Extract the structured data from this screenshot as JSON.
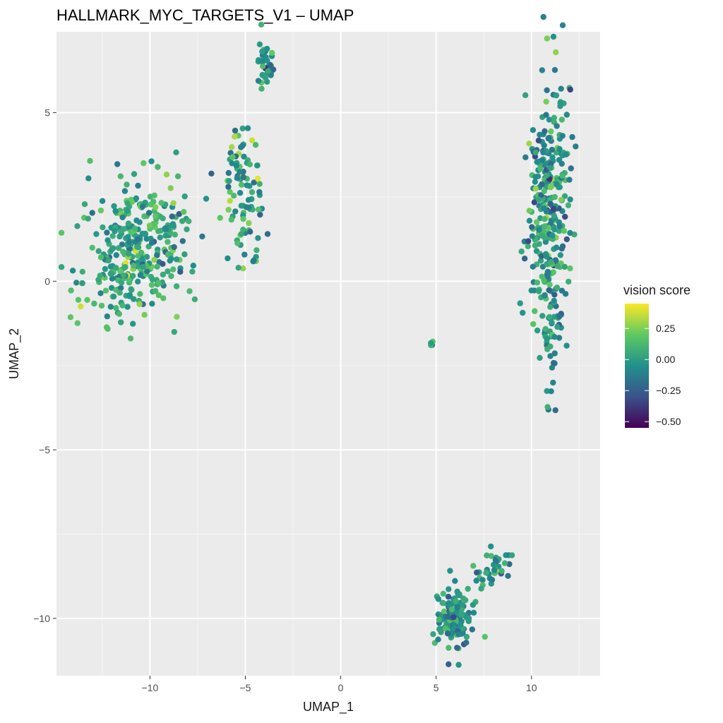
{
  "chart_data": {
    "type": "scatter",
    "title": "HALLMARK_MYC_TARGETS_V1 – UMAP",
    "xlabel": "UMAP_1",
    "ylabel": "UMAP_2",
    "xlim": [
      -14.9,
      13.6
    ],
    "ylim": [
      -11.7,
      7.4
    ],
    "x_ticks": [
      -10,
      -5,
      0,
      5,
      10
    ],
    "x_tick_labels": [
      "−10",
      "−5",
      "0",
      "5",
      "10"
    ],
    "y_ticks": [
      -10,
      -5,
      0,
      5
    ],
    "y_tick_labels": [
      "−10",
      "−5",
      "0",
      "5"
    ],
    "grid": true,
    "legend": {
      "title": "vision score",
      "placement": "right",
      "min": -0.55,
      "max": 0.45,
      "ticks": [
        0.25,
        0.0,
        -0.25,
        -0.5
      ],
      "tick_labels": [
        "0.25",
        "0.00",
        "−0.25",
        "−0.50"
      ],
      "colormap": "viridis",
      "colors": [
        "#440154",
        "#3b528b",
        "#21918c",
        "#5ec962",
        "#fde725"
      ]
    },
    "clusters": [
      {
        "cx": -10.6,
        "cy": 1.0,
        "sx": 1.45,
        "sy": 1.05,
        "rot": 0.42,
        "n": 360,
        "mean": 0.05,
        "sd": 0.13
      },
      {
        "cx": -3.9,
        "cy": 6.4,
        "sx": 0.22,
        "sy": 0.42,
        "rot": 0.0,
        "n": 38,
        "mean": -0.03,
        "sd": 0.12
      },
      {
        "cx": -5.0,
        "cy": 2.6,
        "sx": 0.45,
        "sy": 1.1,
        "rot": 0.1,
        "n": 95,
        "mean": 0.02,
        "sd": 0.14
      },
      {
        "cx": 10.9,
        "cy": 2.3,
        "sx": 0.55,
        "sy": 1.9,
        "rot": 0.0,
        "n": 300,
        "mean": -0.02,
        "sd": 0.14
      },
      {
        "cx": 11.0,
        "cy": -1.2,
        "sx": 0.18,
        "sy": 1.3,
        "rot": 0.0,
        "n": 40,
        "mean": 0.0,
        "sd": 0.12
      },
      {
        "cx": 4.8,
        "cy": -1.85,
        "sx": 0.04,
        "sy": 0.04,
        "rot": 0.0,
        "n": 4,
        "mean": 0.0,
        "sd": 0.1
      },
      {
        "cx": 5.9,
        "cy": -10.0,
        "sx": 0.5,
        "sy": 0.45,
        "rot": 0.0,
        "n": 130,
        "mean": -0.05,
        "sd": 0.12
      },
      {
        "cx": 8.1,
        "cy": -8.5,
        "sx": 0.55,
        "sy": 0.25,
        "rot": 0.35,
        "n": 40,
        "mean": 0.05,
        "sd": 0.12
      }
    ]
  }
}
